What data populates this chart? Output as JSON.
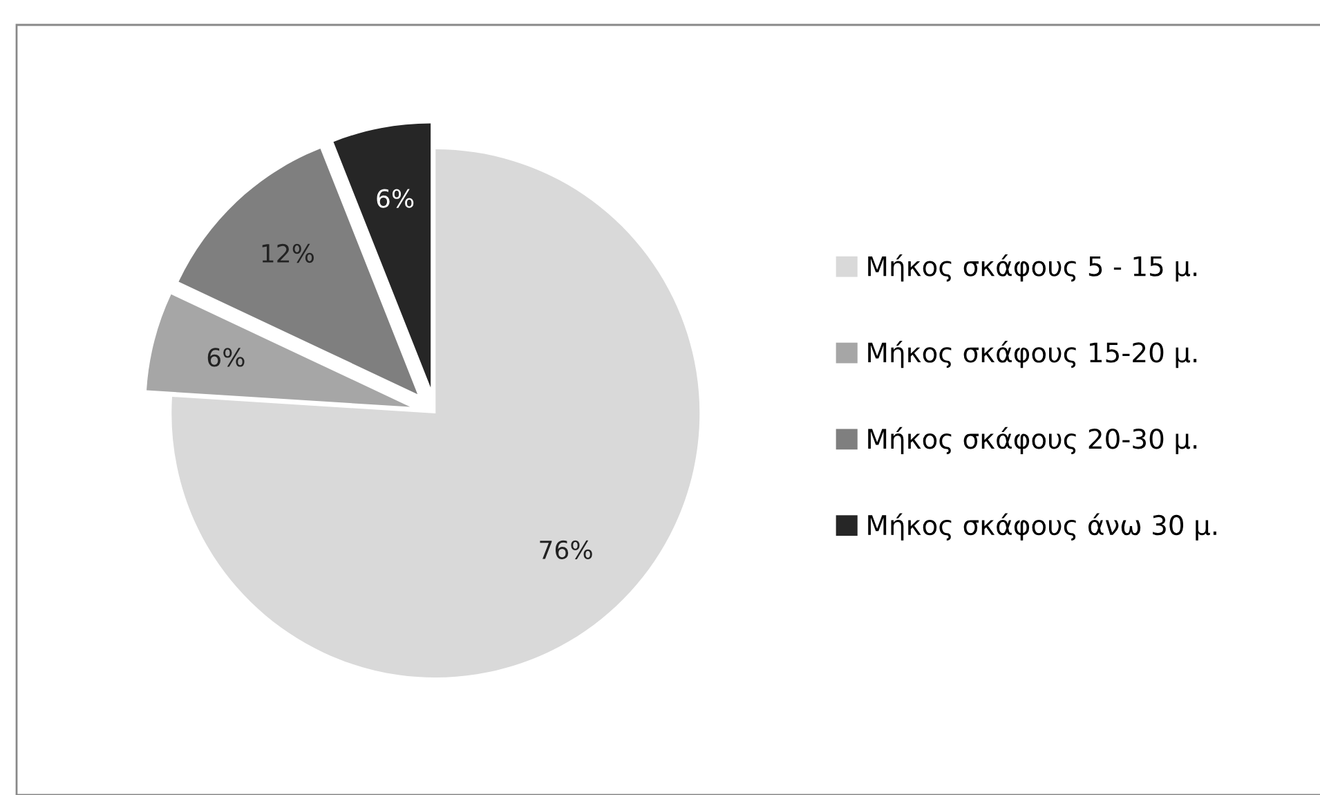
{
  "chart_data": {
    "type": "pie",
    "categories": [
      "Μήκος σκάφους 5 - 15 μ.",
      "Μήκος σκάφους 15-20 μ.",
      "Μήκος σκάφους 20-30 μ.",
      "Μήκος σκάφους άνω 30 μ."
    ],
    "values": [
      76,
      6,
      12,
      6
    ],
    "colors": [
      "#d9d9d9",
      "#a6a6a6",
      "#7f7f7f",
      "#262626"
    ],
    "value_labels": [
      "76%",
      "6%",
      "12%",
      "6%"
    ],
    "legend": "right"
  }
}
